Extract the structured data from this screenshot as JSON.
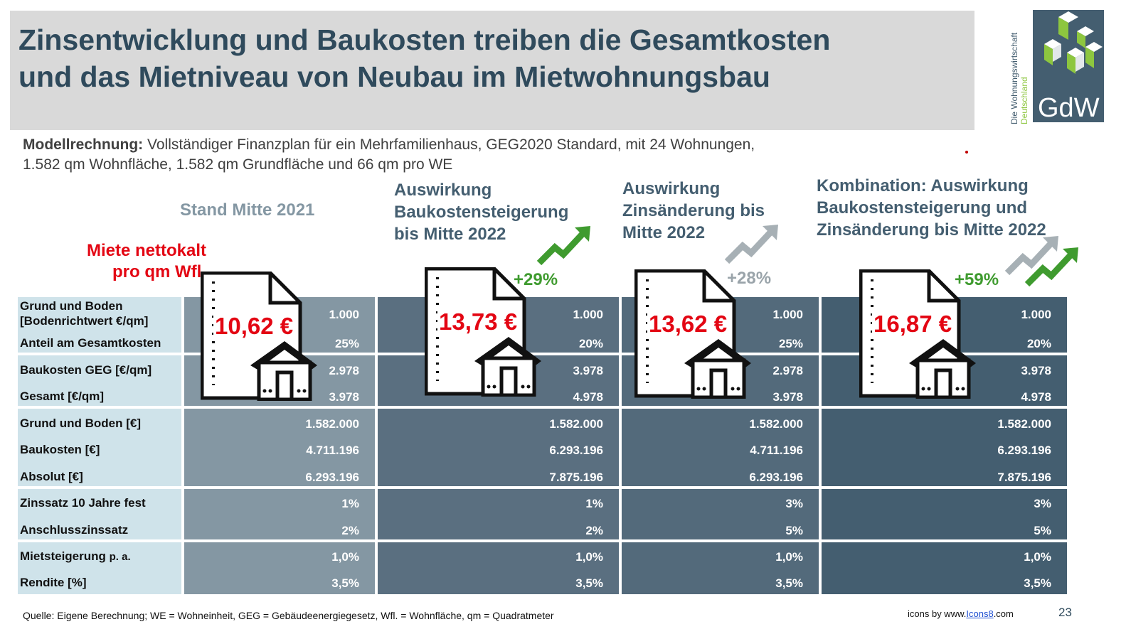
{
  "title_line1": "Zinsentwicklung und Baukosten treiben die Gesamtkosten",
  "title_line2": "und das Mietniveau von Neubau im Mietwohnungsbau",
  "logo": {
    "text": "GdW",
    "vertical_line1": "Die Wohnungswirtschaft",
    "vertical_line2": "Deutschland",
    "bg_color": "#445e70",
    "accent_color": "#8dc63f"
  },
  "model": {
    "bold": "Modellrechnung:",
    "line1": " Vollständiger Finanzplan für ein Mehrfamilienhaus, GEG2020 Standard, mit 24 Wohnungen,",
    "line2": "1.582 qm Wohnfläche, 1.582 qm Grundfläche und 66 qm pro WE"
  },
  "miete_label_line1": "Miete nettokalt",
  "miete_label_line2": "pro qm Wfl.",
  "rows": [
    "Grund und Boden",
    "[Bodenrichtwert €/qm]",
    "Anteil am Gesamtkosten",
    "Baukosten GEG [€/qm]",
    "Gesamt [€/qm]",
    "Grund und Boden [€]",
    "Baukosten [€]",
    "Absolut [€]",
    "Zinssatz 10 Jahre fest",
    "Anschlusszinssatz",
    "Mietsteigerung",
    "p. a.",
    "Rendite [%]"
  ],
  "columns": [
    {
      "header": [
        "Stand Mitte 2021"
      ],
      "header_color": "#8497a3",
      "bg": "#8497a3",
      "price": "10,62 €",
      "change": "",
      "values": [
        "1.000",
        "25%",
        "2.978",
        "3.978",
        "1.582.000",
        "4.711.196",
        "6.293.196",
        "1%",
        "2%",
        "1,0%",
        "3,5%"
      ]
    },
    {
      "header": [
        "Auswirkung",
        "Baukostensteigerung",
        "bis Mitte 2022"
      ],
      "header_color": "#445e70",
      "bg": "#5a6f80",
      "price": "13,73 €",
      "change": "+29%",
      "change_color": "#3f9b2f",
      "values": [
        "1.000",
        "20%",
        "3.978",
        "4.978",
        "1.582.000",
        "6.293.196",
        "7.875.196",
        "1%",
        "2%",
        "1,0%",
        "3,5%"
      ]
    },
    {
      "header": [
        "Auswirkung",
        "Zinsänderung bis",
        "Mitte 2022"
      ],
      "header_color": "#445e70",
      "bg": "#536a7b",
      "price": "13,62 €",
      "change": "+28%",
      "change_color": "#9aa4aa",
      "values": [
        "1.000",
        "25%",
        "2.978",
        "3.978",
        "1.582.000",
        "4.711.196",
        "6.293.196",
        "3%",
        "5%",
        "1,0%",
        "3,5%"
      ]
    },
    {
      "header": [
        "Kombination: Auswirkung",
        "Baukostensteigerung und",
        "Zinsänderung bis Mitte 2022"
      ],
      "header_color": "#445e70",
      "bg": "#445e70",
      "price": "16,87 €",
      "change": "+59%",
      "change_color": "#3f9b2f",
      "values": [
        "1.000",
        "20%",
        "3.978",
        "4.978",
        "1.582.000",
        "6.293.196",
        "7.875.196",
        "3%",
        "5%",
        "1,0%",
        "3,5%"
      ]
    }
  ],
  "footer": "Quelle: Eigene Berechnung; WE = Wohneinheit, GEG = Gebäudeenergiegesetz, Wfl. = Wohnfläche, qm = Quadratmeter",
  "icons_credit_prefix": "icons by www.",
  "icons_credit_link": "Icons8",
  "icons_credit_suffix": ".com",
  "page_number": "23"
}
